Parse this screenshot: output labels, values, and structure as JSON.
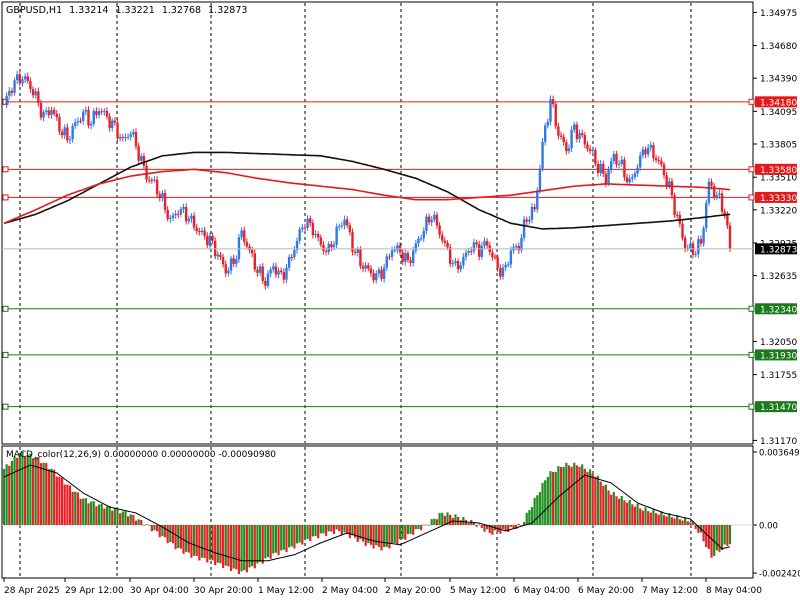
{
  "header": {
    "symbol": "GBPUSD,H1",
    "open": "1.33214",
    "high": "1.33221",
    "low": "1.32768",
    "close": "1.32873"
  },
  "chart_data": [
    {
      "type": "candlestick",
      "title": "GBPUSD,H1  1.33214 1.33221 1.32768 1.32873",
      "ylim": [
        1.3117,
        1.34975
      ],
      "y_ticks": [
        "1.34975",
        "1.34680",
        "1.34390",
        "1.34095",
        "1.33805",
        "1.33510",
        "1.33220",
        "1.32925",
        "1.32635",
        "1.32050",
        "1.31755",
        "1.31170"
      ],
      "x_ticks": [
        "28 Apr 2025",
        "29 Apr 12:00",
        "30 Apr 04:00",
        "30 Apr 20:00",
        "1 May 12:00",
        "2 May 04:00",
        "2 May 20:00",
        "5 May 12:00",
        "6 May 04:00",
        "6 May 20:00",
        "7 May 12:00",
        "8 May 04:00"
      ],
      "current_price": "1.32873",
      "horizontal_levels": [
        {
          "label": "1.34180",
          "value": 1.3418,
          "color": "#e41a1a"
        },
        {
          "label": "1.33580",
          "value": 1.3358,
          "color": "#e41a1a"
        },
        {
          "label": "1.33330",
          "value": 1.3333,
          "color": "#e41a1a"
        },
        {
          "label": "1.32340",
          "value": 1.3234,
          "color": "#1b7a1b"
        },
        {
          "label": "1.31930",
          "value": 1.3193,
          "color": "#1b7a1b"
        },
        {
          "label": "1.31470",
          "value": 1.3147,
          "color": "#1b7a1b"
        }
      ],
      "close_path": [
        [
          0,
          1.3415
        ],
        [
          3,
          1.3432
        ],
        [
          6,
          1.344
        ],
        [
          9,
          1.3436
        ],
        [
          12,
          1.3422
        ],
        [
          15,
          1.3405
        ],
        [
          18,
          1.3412
        ],
        [
          21,
          1.3395
        ],
        [
          24,
          1.3385
        ],
        [
          27,
          1.3398
        ],
        [
          30,
          1.3408
        ],
        [
          33,
          1.34
        ],
        [
          36,
          1.3412
        ],
        [
          39,
          1.3404
        ],
        [
          42,
          1.3395
        ],
        [
          45,
          1.3383
        ],
        [
          48,
          1.3392
        ],
        [
          51,
          1.3372
        ],
        [
          54,
          1.3352
        ],
        [
          57,
          1.3345
        ],
        [
          60,
          1.333
        ],
        [
          63,
          1.3312
        ],
        [
          66,
          1.3322
        ],
        [
          69,
          1.3318
        ],
        [
          72,
          1.3308
        ],
        [
          75,
          1.33
        ],
        [
          78,
          1.3295
        ],
        [
          81,
          1.3282
        ],
        [
          84,
          1.3268
        ],
        [
          87,
          1.3275
        ],
        [
          90,
          1.3302
        ],
        [
          93,
          1.3285
        ],
        [
          96,
          1.3268
        ],
        [
          99,
          1.3258
        ],
        [
          102,
          1.3272
        ],
        [
          105,
          1.3262
        ],
        [
          108,
          1.3275
        ],
        [
          111,
          1.3295
        ],
        [
          114,
          1.3312
        ],
        [
          117,
          1.3305
        ],
        [
          120,
          1.329
        ],
        [
          123,
          1.3285
        ],
        [
          126,
          1.3302
        ],
        [
          129,
          1.3315
        ],
        [
          132,
          1.329
        ],
        [
          135,
          1.3275
        ],
        [
          138,
          1.3268
        ],
        [
          141,
          1.3262
        ],
        [
          144,
          1.327
        ],
        [
          147,
          1.3288
        ],
        [
          150,
          1.3285
        ],
        [
          153,
          1.3275
        ],
        [
          156,
          1.329
        ],
        [
          159,
          1.3305
        ],
        [
          162,
          1.3318
        ],
        [
          165,
          1.3302
        ],
        [
          168,
          1.3285
        ],
        [
          171,
          1.327
        ],
        [
          174,
          1.3278
        ],
        [
          177,
          1.329
        ],
        [
          180,
          1.3287
        ],
        [
          183,
          1.3292
        ],
        [
          186,
          1.3275
        ],
        [
          189,
          1.3265
        ],
        [
          192,
          1.3285
        ],
        [
          195,
          1.329
        ],
        [
          198,
          1.3315
        ],
        [
          201,
          1.3322
        ],
        [
          204,
          1.338
        ],
        [
          207,
          1.342
        ],
        [
          210,
          1.339
        ],
        [
          213,
          1.3375
        ],
        [
          216,
          1.3395
        ],
        [
          219,
          1.3385
        ],
        [
          222,
          1.3375
        ],
        [
          225,
          1.336
        ],
        [
          228,
          1.335
        ],
        [
          231,
          1.337
        ],
        [
          234,
          1.336
        ],
        [
          237,
          1.3345
        ],
        [
          240,
          1.3362
        ],
        [
          243,
          1.3378
        ],
        [
          246,
          1.3372
        ],
        [
          249,
          1.336
        ],
        [
          252,
          1.3342
        ],
        [
          255,
          1.3315
        ],
        [
          258,
          1.329
        ],
        [
          261,
          1.3285
        ],
        [
          264,
          1.3292
        ],
        [
          267,
          1.3345
        ],
        [
          270,
          1.3335
        ],
        [
          273,
          1.332
        ],
        [
          275,
          1.3287
        ]
      ],
      "ma_slow_path": [
        [
          0,
          1.331
        ],
        [
          12,
          1.3318
        ],
        [
          24,
          1.333
        ],
        [
          36,
          1.3345
        ],
        [
          48,
          1.336
        ],
        [
          60,
          1.337
        ],
        [
          72,
          1.3373
        ],
        [
          84,
          1.3373
        ],
        [
          96,
          1.3372
        ],
        [
          108,
          1.3371
        ],
        [
          120,
          1.337
        ],
        [
          132,
          1.3365
        ],
        [
          144,
          1.3358
        ],
        [
          156,
          1.335
        ],
        [
          168,
          1.3338
        ],
        [
          180,
          1.3322
        ],
        [
          192,
          1.331
        ],
        [
          204,
          1.3305
        ],
        [
          216,
          1.3306
        ],
        [
          228,
          1.3308
        ],
        [
          240,
          1.331
        ],
        [
          252,
          1.3312
        ],
        [
          264,
          1.3315
        ],
        [
          275,
          1.3318
        ]
      ],
      "ma_fast_path": [
        [
          0,
          1.331
        ],
        [
          12,
          1.3322
        ],
        [
          24,
          1.3335
        ],
        [
          36,
          1.3345
        ],
        [
          48,
          1.3352
        ],
        [
          60,
          1.3356
        ],
        [
          72,
          1.3358
        ],
        [
          84,
          1.3355
        ],
        [
          96,
          1.335
        ],
        [
          108,
          1.3346
        ],
        [
          120,
          1.3343
        ],
        [
          132,
          1.334
        ],
        [
          144,
          1.3335
        ],
        [
          156,
          1.3331
        ],
        [
          168,
          1.3331
        ],
        [
          180,
          1.3333
        ],
        [
          192,
          1.3335
        ],
        [
          204,
          1.3339
        ],
        [
          216,
          1.3343
        ],
        [
          228,
          1.3345
        ],
        [
          240,
          1.3344
        ],
        [
          252,
          1.3343
        ],
        [
          264,
          1.3342
        ],
        [
          275,
          1.334
        ]
      ]
    },
    {
      "type": "bar",
      "title": "MACD_color(12,26,9) 0.00000000 0.00000000 -0.00090980",
      "ylim": [
        -0.00242,
        0.003649
      ],
      "y_ticks": [
        "0.003649",
        "0.00",
        "-0.002420"
      ],
      "histogram_path": [
        [
          0,
          0.0028
        ],
        [
          6,
          0.0036
        ],
        [
          12,
          0.0034
        ],
        [
          18,
          0.0028
        ],
        [
          24,
          0.002
        ],
        [
          30,
          0.0013
        ],
        [
          36,
          0.001
        ],
        [
          42,
          0.0008
        ],
        [
          48,
          0.0005
        ],
        [
          54,
          0.0
        ],
        [
          60,
          -0.0006
        ],
        [
          66,
          -0.0012
        ],
        [
          72,
          -0.0016
        ],
        [
          78,
          -0.0018
        ],
        [
          84,
          -0.0021
        ],
        [
          90,
          -0.0024
        ],
        [
          96,
          -0.002
        ],
        [
          102,
          -0.0015
        ],
        [
          108,
          -0.0012
        ],
        [
          114,
          -0.0008
        ],
        [
          120,
          -0.0005
        ],
        [
          126,
          -0.0003
        ],
        [
          132,
          -0.0006
        ],
        [
          138,
          -0.001
        ],
        [
          144,
          -0.0012
        ],
        [
          150,
          -0.0008
        ],
        [
          156,
          -0.0003
        ],
        [
          160,
          0.0
        ],
        [
          166,
          0.0006
        ],
        [
          172,
          0.0004
        ],
        [
          178,
          0.0001
        ],
        [
          184,
          -0.0004
        ],
        [
          190,
          -0.0003
        ],
        [
          196,
          0.0
        ],
        [
          200,
          0.001
        ],
        [
          206,
          0.0025
        ],
        [
          212,
          0.003
        ],
        [
          218,
          0.003
        ],
        [
          224,
          0.0025
        ],
        [
          230,
          0.0016
        ],
        [
          236,
          0.0012
        ],
        [
          242,
          0.0008
        ],
        [
          248,
          0.0006
        ],
        [
          254,
          0.0004
        ],
        [
          260,
          0.0002
        ],
        [
          264,
          -0.0005
        ],
        [
          268,
          -0.0016
        ],
        [
          272,
          -0.0012
        ],
        [
          275,
          -0.0009
        ]
      ],
      "signal_path": [
        [
          0,
          0.0024
        ],
        [
          10,
          0.003
        ],
        [
          20,
          0.0026
        ],
        [
          30,
          0.0016
        ],
        [
          40,
          0.0009
        ],
        [
          50,
          0.0006
        ],
        [
          60,
          -0.0001
        ],
        [
          70,
          -0.0009
        ],
        [
          80,
          -0.0014
        ],
        [
          90,
          -0.0018
        ],
        [
          100,
          -0.0018
        ],
        [
          110,
          -0.0015
        ],
        [
          120,
          -0.0009
        ],
        [
          130,
          -0.0004
        ],
        [
          140,
          -0.0008
        ],
        [
          150,
          -0.001
        ],
        [
          160,
          -0.0004
        ],
        [
          170,
          0.0002
        ],
        [
          180,
          0.0001
        ],
        [
          190,
          -0.0003
        ],
        [
          200,
          0.0001
        ],
        [
          210,
          0.0014
        ],
        [
          220,
          0.0025
        ],
        [
          230,
          0.0021
        ],
        [
          240,
          0.0011
        ],
        [
          250,
          0.0006
        ],
        [
          260,
          0.0003
        ],
        [
          268,
          -0.0007
        ],
        [
          272,
          -0.0012
        ],
        [
          275,
          -0.0011
        ]
      ]
    }
  ]
}
